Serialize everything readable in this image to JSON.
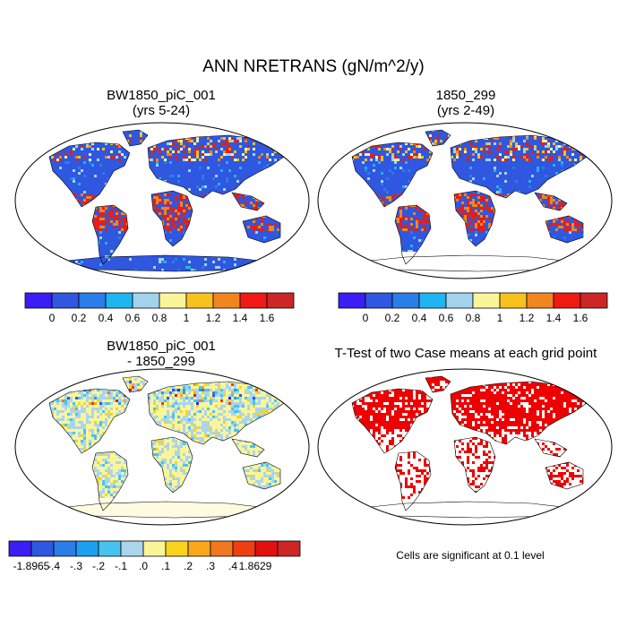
{
  "figure": {
    "title": "ANN NRETRANS (gN/m^2/y)"
  },
  "panels": [
    {
      "id": "case1",
      "title_line1": "BW1850_piC_001",
      "title_line2": "(yrs 5-24)"
    },
    {
      "id": "case2",
      "title_line1": "1850_299",
      "title_line2": "(yrs 2-49)"
    },
    {
      "id": "diff",
      "title_line1": "BW1850_piC_001",
      "title_line2": "- 1850_299"
    },
    {
      "id": "ttest",
      "title_line1": "T-Test of two Case means at each grid point",
      "title_line2": ""
    }
  ],
  "colorbars": {
    "field": {
      "colors": [
        "#3a1ef5",
        "#2f57e0",
        "#2b7de8",
        "#1fb5f0",
        "#a3d3ec",
        "#fbf59a",
        "#f8c21e",
        "#f1861f",
        "#ef1b12",
        "#cc2626"
      ],
      "labels": [
        "0",
        "0.2",
        "0.4",
        "0.6",
        "0.8",
        "1",
        "1.2",
        "1.4",
        "1.6"
      ]
    },
    "diff": {
      "colors": [
        "#3a1ef5",
        "#2f57e0",
        "#2b7de8",
        "#1ea0f0",
        "#48c3f0",
        "#aad5ec",
        "#fbf59a",
        "#f8d41e",
        "#f8a81a",
        "#f1781f",
        "#ef3f12",
        "#e41010",
        "#cc2626"
      ],
      "labels": [
        "-1.8965",
        "-.4",
        "-.3",
        "-.2",
        "-.1",
        ".0",
        ".1",
        ".2",
        ".3",
        ".4",
        "1.8629"
      ]
    }
  },
  "significance_note": "Cells are significant at 0.1 level"
}
